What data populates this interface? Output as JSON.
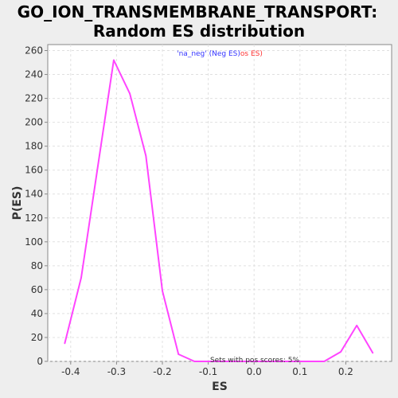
{
  "chart_data": {
    "type": "line",
    "title_line1": "GO_ION_TRANSMEMBRANE_TRANSPORT:",
    "title_line2": "Random ES distribution",
    "xlabel": "ES",
    "ylabel": "P(ES)",
    "xlim": [
      -0.45,
      0.3
    ],
    "ylim": [
      0,
      265
    ],
    "x_ticks": [
      -0.4,
      -0.3,
      -0.2,
      -0.1,
      0.0,
      0.1,
      0.2
    ],
    "x_tick_labels": [
      "-0.4",
      "-0.3",
      "-0.2",
      "-0.1",
      "0.0",
      "0.1",
      "0.2"
    ],
    "y_ticks": [
      0,
      20,
      40,
      60,
      80,
      100,
      120,
      140,
      160,
      180,
      200,
      220,
      240,
      260
    ],
    "y_tick_labels": [
      "0",
      "20",
      "40",
      "60",
      "80",
      "100",
      "120",
      "140",
      "160",
      "180",
      "200",
      "220",
      "240",
      "260"
    ],
    "grid": true,
    "legend_position": "top-center",
    "legend": {
      "name_part": "'na_neg'",
      "neg_part": " (Neg ES)",
      "pos_part": "os ES)"
    },
    "annotation": "Sets with pos scores: 5%",
    "series": [
      {
        "x": [
          -0.413,
          -0.377,
          -0.342,
          -0.306,
          -0.271,
          -0.236,
          -0.2,
          -0.165,
          -0.13,
          -0.094,
          -0.059,
          -0.024,
          0.012,
          0.047,
          0.082,
          0.118,
          0.153,
          0.189,
          0.224,
          0.259
        ],
        "y": [
          15,
          70,
          160,
          252,
          224,
          172,
          59,
          6,
          0,
          0,
          0,
          0,
          0,
          0,
          0,
          0,
          0,
          8,
          30,
          7
        ]
      }
    ],
    "colors": {
      "line": "#ff44ff",
      "legend_neg": "#3333ff",
      "legend_pos": "#ff3333",
      "plot_bg": "#ffffff",
      "grid": "#e0e0e0"
    }
  }
}
